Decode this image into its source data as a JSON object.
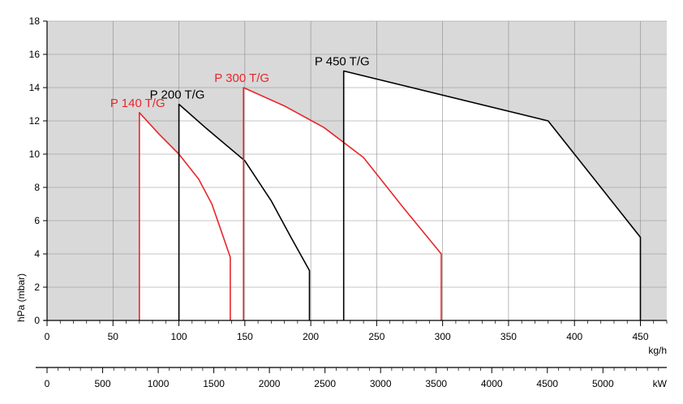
{
  "chart_data": {
    "type": "area",
    "ylabel": "hPa (mbar)",
    "xlabel": "kg/h",
    "secondary_xlabel": "kW",
    "xlim": [
      0,
      470
    ],
    "ylim": [
      0,
      18
    ],
    "x_ticks": [
      0,
      50,
      100,
      150,
      200,
      250,
      300,
      350,
      400,
      450
    ],
    "y_ticks": [
      0,
      2,
      4,
      6,
      8,
      10,
      12,
      14,
      16,
      18
    ],
    "secondary_ticks": [
      0,
      500,
      1000,
      1500,
      2000,
      2500,
      3000,
      3500,
      4000,
      4500,
      5000
    ],
    "secondary_kw_per_kgh": 11.86,
    "grid": true,
    "background_color": "#d9d9d9",
    "series": [
      {
        "name": "P 140 T/G",
        "color": "#e8262b",
        "points": [
          [
            70,
            0
          ],
          [
            70,
            12.5
          ],
          [
            85,
            11.2
          ],
          [
            100,
            10.0
          ],
          [
            115,
            8.5
          ],
          [
            125,
            7.0
          ],
          [
            132,
            5.4
          ],
          [
            139,
            3.8
          ],
          [
            139,
            0
          ]
        ]
      },
      {
        "name": "P 200 T/G",
        "color": "#000000",
        "points": [
          [
            100,
            0
          ],
          [
            100,
            13.0
          ],
          [
            120,
            11.6
          ],
          [
            150,
            9.6
          ],
          [
            170,
            7.2
          ],
          [
            185,
            5.0
          ],
          [
            199,
            3.0
          ],
          [
            199,
            0
          ]
        ]
      },
      {
        "name": "P 300 T/G",
        "color": "#e8262b",
        "points": [
          [
            149,
            0
          ],
          [
            149,
            14.0
          ],
          [
            180,
            12.9
          ],
          [
            210,
            11.6
          ],
          [
            240,
            9.8
          ],
          [
            270,
            6.8
          ],
          [
            299,
            4.0
          ],
          [
            299,
            0
          ]
        ]
      },
      {
        "name": "P 450 T/G",
        "color": "#000000",
        "points": [
          [
            225,
            0
          ],
          [
            225,
            15.0
          ],
          [
            380,
            12.0
          ],
          [
            450,
            5.0
          ],
          [
            450,
            0
          ]
        ]
      }
    ]
  }
}
